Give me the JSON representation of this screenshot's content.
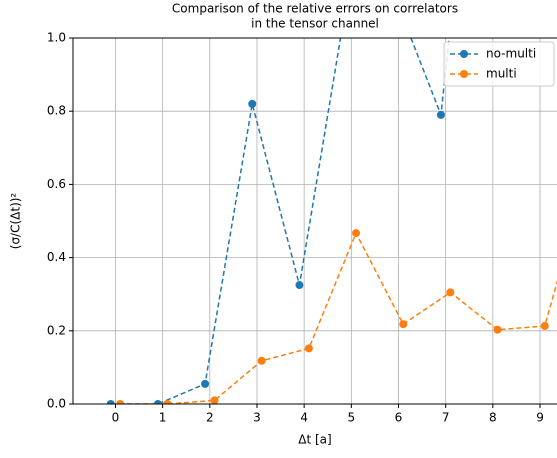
{
  "chart_data": {
    "type": "line",
    "title": [
      "Comparison of the relative errors on correlators",
      "in the tensor channel"
    ],
    "xlabel": "Δt [a]",
    "ylabel": "(σ/C(Δt))²",
    "xlim": [
      -0.9,
      9.36
    ],
    "ylim": [
      0,
      1
    ],
    "xticks": [
      0,
      1,
      2,
      3,
      4,
      5,
      6,
      7,
      8,
      9
    ],
    "yticks": [
      {
        "value": 0,
        "label": "0.0"
      },
      {
        "value": 0.2,
        "label": "0.2"
      },
      {
        "value": 0.4,
        "label": "0.4"
      },
      {
        "value": 0.6,
        "label": "0.6"
      },
      {
        "value": 0.8,
        "label": "0.8"
      },
      {
        "value": 1,
        "label": "1.0"
      }
    ],
    "grid": true,
    "legend": "upper right",
    "series": [
      {
        "name": "no-multi",
        "color": "#1f77b4",
        "x": [
          -0.1,
          0.9,
          1.9,
          2.9,
          3.9,
          4.9,
          5.9,
          6.9,
          7.9
        ],
        "values": [
          0,
          0,
          0.055,
          0.82,
          0.325,
          1.1,
          1.12,
          0.79,
          2.0
        ]
      },
      {
        "name": "multi",
        "color": "#ff7f0e",
        "x": [
          0.1,
          1.1,
          2.1,
          3.1,
          4.1,
          5.1,
          6.1,
          7.1,
          8.1,
          9.1,
          10.1
        ],
        "values": [
          0,
          0,
          0.01,
          0.118,
          0.152,
          0.467,
          0.218,
          0.305,
          0.203,
          0.213,
          0.67
        ]
      }
    ]
  }
}
